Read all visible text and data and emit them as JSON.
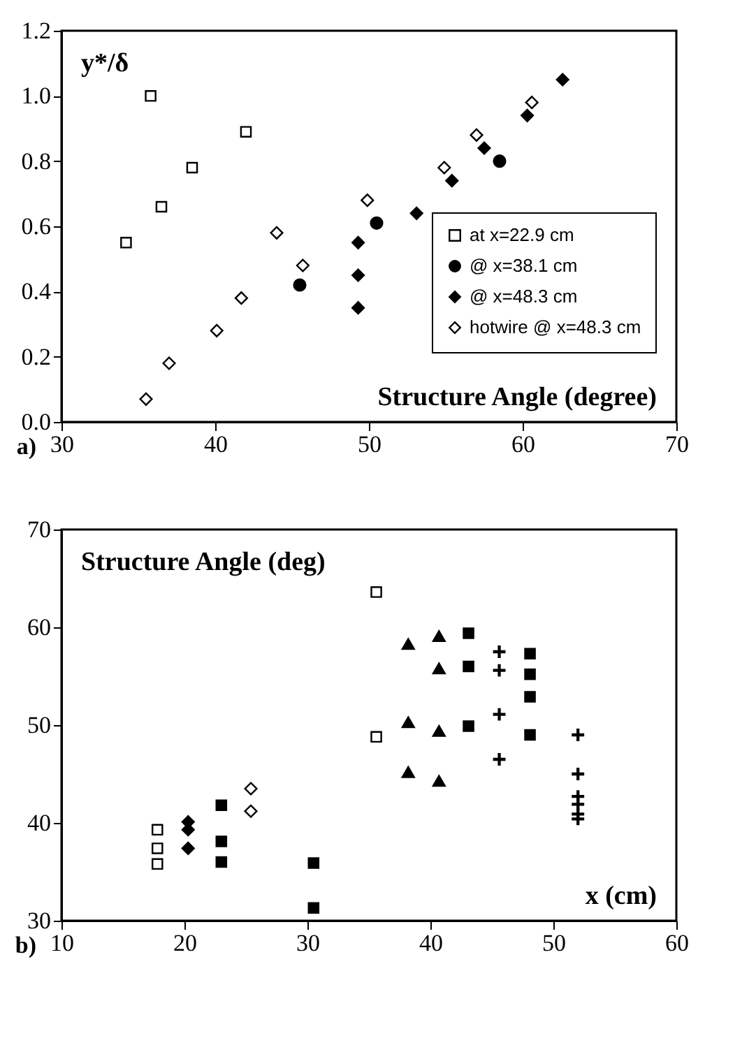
{
  "chart_data": [
    {
      "type": "scatter",
      "xlabel": "Structure Angle (degree)",
      "ylabel": "y*/δ",
      "annotations": [
        "a)"
      ],
      "xlim": [
        30,
        70
      ],
      "xticks": [
        30,
        40,
        50,
        60,
        70
      ],
      "ylim": [
        0,
        1.2
      ],
      "yticks": [
        {
          "value": 0,
          "label": "0.0"
        },
        {
          "value": 0.2,
          "label": "0.2"
        },
        {
          "value": 0.4,
          "label": "0.4"
        },
        {
          "value": 0.6,
          "label": "0.6"
        },
        {
          "value": 0.8,
          "label": "0.8"
        },
        {
          "value": 1.0,
          "label": "1.0"
        },
        {
          "value": 1.2,
          "label": "1.2"
        }
      ],
      "grid": false,
      "legend": "bottom right",
      "series": [
        {
          "name": "at x=22.9 cm",
          "color": "#ffffff",
          "marker": "square",
          "x": [
            34.2,
            35.8,
            36.5,
            38.5,
            42.0
          ],
          "values": [
            0.55,
            1.0,
            0.66,
            0.78,
            0.89
          ]
        },
        {
          "name": "@ x=38.1 cm",
          "color": "#000000",
          "marker": "circle",
          "x": [
            45.5,
            50.5,
            58.5
          ],
          "values": [
            0.42,
            0.61,
            0.8
          ]
        },
        {
          "name": "@ x=48.3 cm",
          "color": "#000000",
          "marker": "diamond",
          "x": [
            49.3,
            49.3,
            49.3,
            53.1,
            55.4,
            57.5,
            60.3,
            62.6
          ],
          "values": [
            0.55,
            0.45,
            0.35,
            0.64,
            0.74,
            0.84,
            0.94,
            1.05
          ]
        },
        {
          "name": "hotwire @ x=48.3 cm",
          "color": "#ffffff",
          "marker": "diamond",
          "x": [
            35.5,
            37.0,
            40.1,
            41.7,
            44.0,
            45.7,
            49.9,
            54.9,
            57.0,
            60.6
          ],
          "values": [
            0.07,
            0.18,
            0.28,
            0.38,
            0.58,
            0.48,
            0.68,
            0.78,
            0.88,
            0.98
          ]
        }
      ]
    },
    {
      "type": "scatter",
      "xlabel": "x (cm)",
      "ylabel": "Structure Angle (deg)",
      "annotations": [
        "b)"
      ],
      "xlim": [
        10,
        60
      ],
      "xticks": [
        10,
        20,
        30,
        40,
        50,
        60
      ],
      "ylim": [
        30,
        70
      ],
      "yticks": [
        30,
        40,
        50,
        60,
        70
      ],
      "grid": false,
      "series": [
        {
          "color": "#ffffff",
          "marker": "square",
          "x": [
            17.8,
            17.8,
            17.8,
            35.6,
            35.6
          ],
          "values": [
            39.3,
            37.4,
            35.8,
            63.6,
            48.8
          ]
        },
        {
          "color": "#000000",
          "marker": "diamond",
          "x": [
            20.3,
            20.3,
            20.3
          ],
          "values": [
            40.1,
            39.3,
            37.4
          ]
        },
        {
          "color": "#000000",
          "marker": "square",
          "x": [
            23.0,
            23.0,
            23.0,
            30.5,
            30.5,
            43.1,
            43.1,
            43.1,
            48.1,
            48.1,
            48.1,
            48.1
          ],
          "values": [
            41.8,
            38.1,
            36.0,
            35.9,
            31.3,
            59.4,
            56.0,
            49.9,
            57.3,
            55.2,
            52.9,
            49.0
          ]
        },
        {
          "color": "#ffffff",
          "marker": "diamond",
          "x": [
            25.4,
            25.4
          ],
          "values": [
            43.5,
            41.2
          ]
        },
        {
          "color": "#000000",
          "marker": "triangle",
          "x": [
            38.2,
            38.2,
            38.2,
            40.7,
            40.7,
            40.7,
            40.7
          ],
          "values": [
            58.3,
            50.3,
            45.2,
            59.1,
            55.8,
            49.4,
            44.3
          ]
        },
        {
          "color": "#000000",
          "marker": "cross",
          "x": [
            45.6,
            45.6,
            45.6,
            45.6
          ],
          "values": [
            57.5,
            55.6,
            51.1,
            46.5
          ]
        },
        {
          "color": "#000000",
          "marker": "cross",
          "x": [
            52.0,
            52.0,
            52.0,
            52.0,
            52.0,
            52.0
          ],
          "values": [
            49.0,
            45.0,
            42.7,
            41.9,
            40.9,
            40.4
          ]
        }
      ]
    }
  ]
}
